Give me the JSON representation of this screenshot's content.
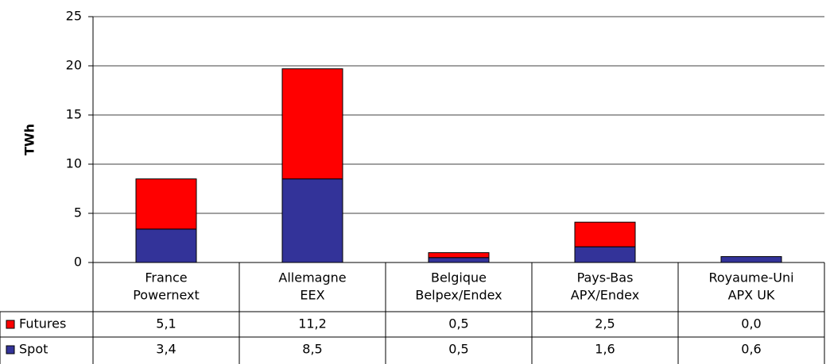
{
  "chart_data": {
    "type": "stacked-bar",
    "ylabel": "TWh",
    "categories": [
      [
        "France",
        "Powernext"
      ],
      [
        "Allemagne",
        "EEX"
      ],
      [
        "Belgique",
        "Belpex/Endex"
      ],
      [
        "Pays-Bas",
        "APX/Endex"
      ],
      [
        "Royaume-Uni",
        "APX UK"
      ]
    ],
    "series": [
      {
        "name": "Futures",
        "color": "#ff0000",
        "values": [
          5.1,
          11.2,
          0.5,
          2.5,
          0.0
        ],
        "value_labels": [
          "5,1",
          "11,2",
          "0,5",
          "2,5",
          "0,0"
        ]
      },
      {
        "name": "Spot",
        "color": "#333399",
        "values": [
          3.4,
          8.5,
          0.5,
          1.6,
          0.6
        ],
        "value_labels": [
          "3,4",
          "8,5",
          "0,5",
          "1,6",
          "0,6"
        ]
      }
    ],
    "ylim": [
      0,
      25
    ],
    "yticks": [
      0,
      5,
      10,
      15,
      20,
      25
    ],
    "grid": true
  }
}
